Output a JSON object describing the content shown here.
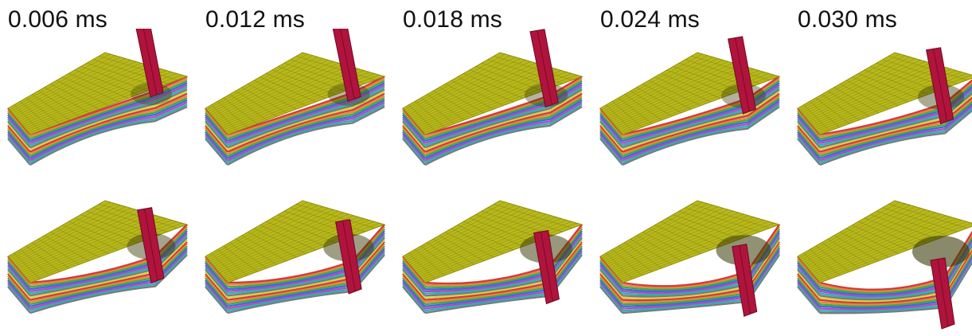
{
  "time_labels": [
    "0.006 ms",
    "0.012 ms",
    "0.018 ms",
    "0.024 ms",
    "0.030 ms"
  ],
  "frames": [
    {
      "row": 1,
      "time": "0.006 ms",
      "deformation": 0.0
    },
    {
      "row": 1,
      "time": "0.012 ms",
      "deformation": 0.05
    },
    {
      "row": 1,
      "time": "0.018 ms",
      "deformation": 0.12
    },
    {
      "row": 1,
      "time": "0.024 ms",
      "deformation": 0.2
    },
    {
      "row": 1,
      "time": "0.030 ms",
      "deformation": 0.32
    },
    {
      "row": 2,
      "deformation": 0.45
    },
    {
      "row": 2,
      "deformation": 0.58
    },
    {
      "row": 2,
      "deformation": 0.7
    },
    {
      "row": 2,
      "deformation": 0.85
    },
    {
      "row": 2,
      "deformation": 1.0
    }
  ],
  "colors": {
    "top_surface": "#b8b81a",
    "top_surface_dark": "#8f8f10",
    "mesh_line": "#3a3a10",
    "projectile": "#b0143c",
    "projectile_dark": "#6e0a24",
    "layer_colors": [
      "#d23b3b",
      "#e58a3a",
      "#46a84a",
      "#3a6fd2",
      "#b54ac4",
      "#2bb3b3",
      "#7a7a7a",
      "#d4d44a"
    ]
  },
  "icons": {
    "projectile": "impactor-shape",
    "plate": "laminate-plate-mesh"
  }
}
